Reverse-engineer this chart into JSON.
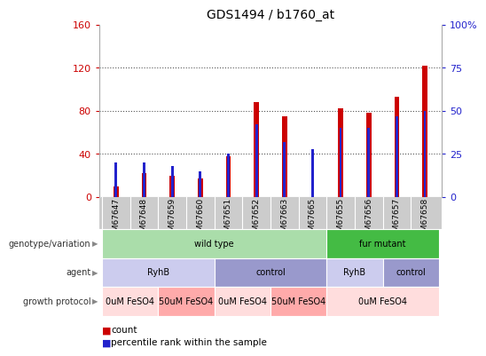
{
  "title": "GDS1494 / b1760_at",
  "samples": [
    "GSM67647",
    "GSM67648",
    "GSM67659",
    "GSM67660",
    "GSM67651",
    "GSM67652",
    "GSM67663",
    "GSM67665",
    "GSM67655",
    "GSM67656",
    "GSM67657",
    "GSM67658"
  ],
  "count_values": [
    10,
    22,
    20,
    17,
    38,
    88,
    75,
    0,
    82,
    78,
    93,
    122
  ],
  "percentile_values": [
    20,
    20,
    18,
    15,
    25,
    42,
    32,
    28,
    40,
    40,
    47,
    50
  ],
  "left_ylim": [
    0,
    160
  ],
  "right_ylim": [
    0,
    100
  ],
  "left_yticks": [
    0,
    40,
    80,
    120,
    160
  ],
  "right_yticks": [
    0,
    25,
    50,
    75,
    100
  ],
  "right_yticklabels": [
    "0",
    "25",
    "50",
    "75",
    "100%"
  ],
  "bar_color": "#cc0000",
  "percentile_color": "#2222cc",
  "grid_color": "#555555",
  "genotype_groups": [
    {
      "label": "wild type",
      "start": 0,
      "end": 7,
      "color": "#aaddaa"
    },
    {
      "label": "fur mutant",
      "start": 8,
      "end": 11,
      "color": "#44bb44"
    }
  ],
  "agent_groups": [
    {
      "label": "RyhB",
      "start": 0,
      "end": 3,
      "color": "#ccccee"
    },
    {
      "label": "control",
      "start": 4,
      "end": 7,
      "color": "#9999cc"
    },
    {
      "label": "RyhB",
      "start": 8,
      "end": 9,
      "color": "#ccccee"
    },
    {
      "label": "control",
      "start": 10,
      "end": 11,
      "color": "#9999cc"
    }
  ],
  "growth_groups": [
    {
      "label": "0uM FeSO4",
      "start": 0,
      "end": 1,
      "color": "#ffdddd"
    },
    {
      "label": "50uM FeSO4",
      "start": 2,
      "end": 3,
      "color": "#ffaaaa"
    },
    {
      "label": "0uM FeSO4",
      "start": 4,
      "end": 5,
      "color": "#ffdddd"
    },
    {
      "label": "50uM FeSO4",
      "start": 6,
      "end": 7,
      "color": "#ffaaaa"
    },
    {
      "label": "0uM FeSO4",
      "start": 8,
      "end": 11,
      "color": "#ffdddd"
    }
  ],
  "left_label_color": "#cc0000",
  "right_label_color": "#2222cc",
  "xlabel_bg": "#cccccc",
  "row_label_color": "#333333",
  "legend_count_color": "#cc0000",
  "legend_pct_color": "#2222cc"
}
